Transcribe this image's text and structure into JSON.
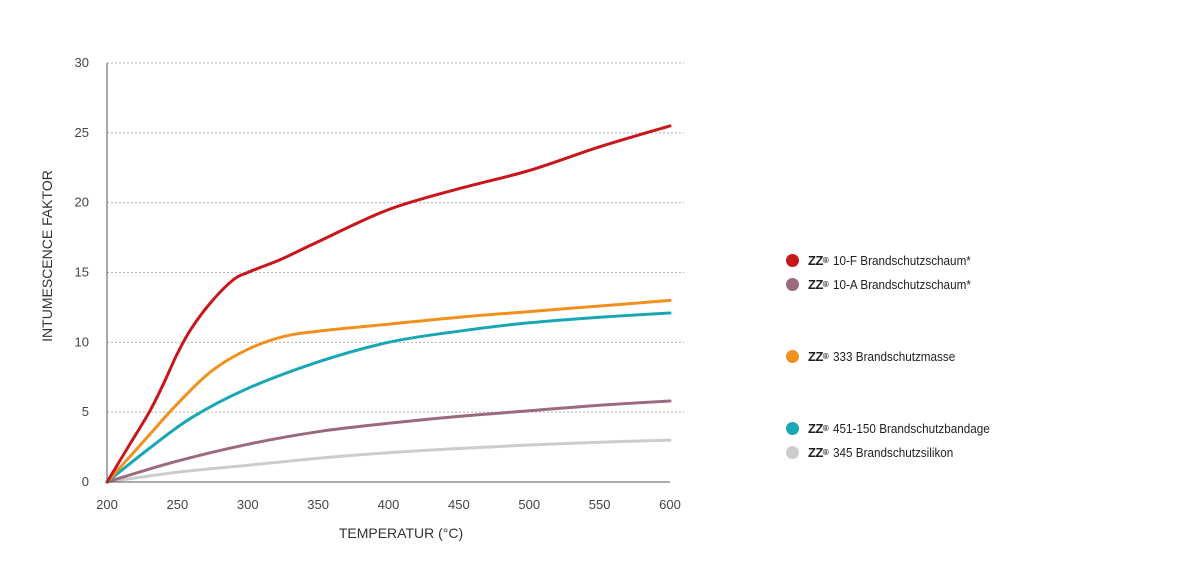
{
  "chart_data": {
    "type": "line",
    "xlabel": "TEMPERATUR (°C)",
    "ylabel": "INTUMESCENCE FAKTOR",
    "xlim": [
      200,
      600
    ],
    "ylim": [
      0,
      30
    ],
    "xticks": [
      "200",
      "250",
      "300",
      "350",
      "400",
      "450",
      "500",
      "550",
      "600"
    ],
    "yticks": [
      "0",
      "5",
      "10",
      "15",
      "20",
      "25",
      "30"
    ],
    "grid": "horizontal-dotted",
    "legend_position": "right",
    "series": [
      {
        "name": "10-F Brandschutzschaum*",
        "brand": "ZZ",
        "color": "#c8161d",
        "x": [
          200,
          215,
          230,
          240,
          250,
          260,
          275,
          290,
          300,
          310,
          325,
          350,
          400,
          450,
          500,
          550,
          600
        ],
        "y": [
          0,
          2.5,
          5,
          7,
          9.2,
          11,
          13,
          14.5,
          15,
          15.4,
          16,
          17.2,
          19.5,
          21,
          22.3,
          24,
          25.5
        ]
      },
      {
        "name": "10-A Brandschutzschaum*",
        "brand": "ZZ",
        "color": "#9b6a81",
        "x": [
          200,
          250,
          300,
          350,
          400,
          450,
          500,
          550,
          600
        ],
        "y": [
          0,
          1.5,
          2.7,
          3.6,
          4.2,
          4.7,
          5.1,
          5.5,
          5.8
        ]
      },
      {
        "name": "333 Brandschutzmasse",
        "brand": "ZZ",
        "color": "#f0901e",
        "x": [
          200,
          225,
          250,
          275,
          300,
          325,
          350,
          400,
          450,
          500,
          550,
          600
        ],
        "y": [
          0,
          2.8,
          5.6,
          8,
          9.5,
          10.4,
          10.8,
          11.3,
          11.8,
          12.2,
          12.6,
          13
        ]
      },
      {
        "name": "451-150 Brandschutzbandage",
        "brand": "ZZ",
        "color": "#1aa7b5",
        "x": [
          200,
          230,
          260,
          300,
          350,
          400,
          450,
          500,
          550,
          600
        ],
        "y": [
          0,
          2.4,
          4.6,
          6.7,
          8.6,
          10,
          10.8,
          11.4,
          11.8,
          12.1
        ]
      },
      {
        "name": "345 Brandschutzsilikon",
        "brand": "ZZ",
        "color": "#cccccc",
        "x": [
          200,
          250,
          300,
          350,
          400,
          450,
          500,
          550,
          600
        ],
        "y": [
          0,
          0.7,
          1.2,
          1.7,
          2.1,
          2.4,
          2.65,
          2.85,
          3
        ]
      }
    ]
  }
}
